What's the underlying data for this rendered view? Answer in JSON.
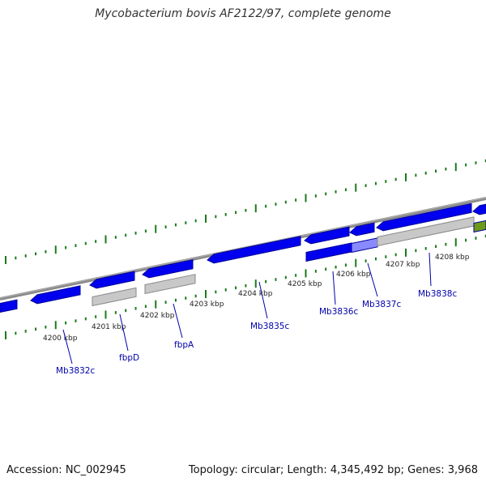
{
  "title": "Mycobacterium bovis AF2122/97, complete genome",
  "footer": {
    "accession": "Accession: NC_002945",
    "summary": "Topology: circular; Length: 4,345,492 bp; Genes: 3,968"
  },
  "colors": {
    "forward_gene": "#0000ee",
    "gene_outline": "#00009a",
    "pseudo_gene": "#c8c8c8",
    "highlight_gene": "#8a8aff",
    "green_gene": "#6e9a1a",
    "backbone": "#8a8a8a",
    "tick": "#1a7a1a",
    "gene_label": "#0000aa"
  },
  "kbp_ticks": [
    "4200 kbp",
    "4201 kbp",
    "4202 kbp",
    "4203 kbp",
    "4204 kbp",
    "4205 kbp",
    "4206 kbp",
    "4207 kbp",
    "4208 kbp"
  ],
  "gene_labels": [
    "Mb3832c",
    "fbpD",
    "fbpA",
    "Mb3835c",
    "Mb3836c",
    "Mb3837c",
    "Mb3838c"
  ]
}
